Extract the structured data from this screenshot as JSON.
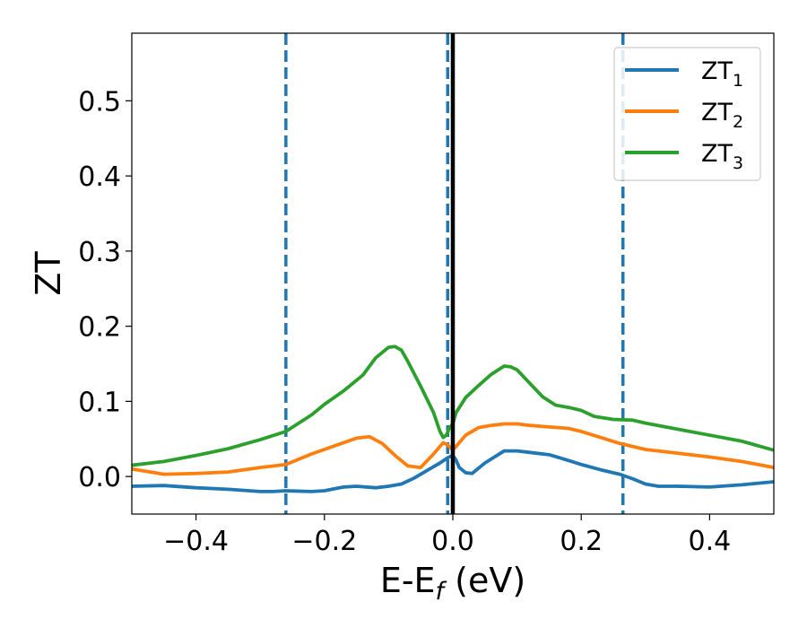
{
  "chart_data": {
    "type": "line",
    "xlabel": "E-E",
    "xlabel_sub": "f",
    "xlabel_unit": " (eV)",
    "ylabel": "ZT",
    "xlim": [
      -0.5,
      0.5
    ],
    "ylim": [
      -0.05,
      0.59
    ],
    "xticks": [
      -0.4,
      -0.2,
      0.0,
      0.2,
      0.4
    ],
    "xtick_labels": [
      "−0.4",
      "−0.2",
      "0.0",
      "0.2",
      "0.4"
    ],
    "yticks": [
      0.0,
      0.1,
      0.2,
      0.3,
      0.4,
      0.5
    ],
    "ytick_labels": [
      "0.0",
      "0.1",
      "0.2",
      "0.3",
      "0.4",
      "0.5"
    ],
    "vlines_dashed": [
      -0.26,
      -0.008,
      0.265
    ],
    "vline_solid": 0.0,
    "legend_position": "upper right",
    "series": [
      {
        "name": "ZT",
        "sub": "1",
        "color": "#1f77b4",
        "x": [
          -0.5,
          -0.45,
          -0.4,
          -0.35,
          -0.3,
          -0.28,
          -0.26,
          -0.22,
          -0.2,
          -0.17,
          -0.15,
          -0.12,
          -0.1,
          -0.08,
          -0.06,
          -0.04,
          -0.02,
          -0.008,
          0.0,
          0.005,
          0.01,
          0.02,
          0.03,
          0.05,
          0.08,
          0.1,
          0.12,
          0.15,
          0.17,
          0.2,
          0.23,
          0.26,
          0.28,
          0.3,
          0.32,
          0.35,
          0.4,
          0.45,
          0.5
        ],
        "y": [
          -0.013,
          -0.012,
          -0.015,
          -0.017,
          -0.02,
          -0.02,
          -0.019,
          -0.02,
          -0.019,
          -0.014,
          -0.013,
          -0.015,
          -0.013,
          -0.01,
          -0.002,
          0.008,
          0.018,
          0.025,
          0.028,
          0.022,
          0.012,
          0.005,
          0.004,
          0.018,
          0.034,
          0.034,
          0.032,
          0.029,
          0.024,
          0.016,
          0.009,
          0.003,
          -0.003,
          -0.01,
          -0.013,
          -0.013,
          -0.014,
          -0.011,
          -0.007
        ]
      },
      {
        "name": "ZT",
        "sub": "2",
        "color": "#ff7f0e",
        "x": [
          -0.5,
          -0.45,
          -0.4,
          -0.35,
          -0.3,
          -0.26,
          -0.22,
          -0.18,
          -0.15,
          -0.13,
          -0.11,
          -0.09,
          -0.07,
          -0.05,
          -0.03,
          -0.015,
          -0.008,
          0.0,
          0.005,
          0.02,
          0.04,
          0.06,
          0.08,
          0.1,
          0.12,
          0.15,
          0.18,
          0.2,
          0.23,
          0.26,
          0.3,
          0.35,
          0.4,
          0.45,
          0.5
        ],
        "y": [
          0.01,
          0.003,
          0.004,
          0.006,
          0.012,
          0.016,
          0.03,
          0.042,
          0.051,
          0.053,
          0.044,
          0.028,
          0.014,
          0.012,
          0.03,
          0.045,
          0.042,
          0.035,
          0.04,
          0.055,
          0.065,
          0.068,
          0.07,
          0.07,
          0.068,
          0.066,
          0.064,
          0.06,
          0.052,
          0.044,
          0.036,
          0.031,
          0.026,
          0.02,
          0.012
        ]
      },
      {
        "name": "ZT",
        "sub": "3",
        "color": "#2ca02c",
        "x": [
          -0.5,
          -0.45,
          -0.4,
          -0.35,
          -0.3,
          -0.26,
          -0.22,
          -0.2,
          -0.17,
          -0.14,
          -0.12,
          -0.1,
          -0.09,
          -0.08,
          -0.07,
          -0.05,
          -0.03,
          -0.02,
          -0.015,
          -0.01,
          -0.005,
          0.0,
          0.005,
          0.02,
          0.04,
          0.06,
          0.08,
          0.09,
          0.1,
          0.12,
          0.14,
          0.16,
          0.18,
          0.2,
          0.22,
          0.25,
          0.28,
          0.3,
          0.35,
          0.4,
          0.45,
          0.5
        ],
        "y": [
          0.015,
          0.02,
          0.028,
          0.037,
          0.049,
          0.06,
          0.082,
          0.096,
          0.114,
          0.135,
          0.158,
          0.172,
          0.173,
          0.168,
          0.153,
          0.12,
          0.085,
          0.06,
          0.052,
          0.055,
          0.065,
          0.07,
          0.085,
          0.105,
          0.121,
          0.136,
          0.147,
          0.146,
          0.142,
          0.124,
          0.106,
          0.095,
          0.092,
          0.088,
          0.08,
          0.076,
          0.075,
          0.071,
          0.063,
          0.055,
          0.047,
          0.035
        ]
      }
    ]
  }
}
